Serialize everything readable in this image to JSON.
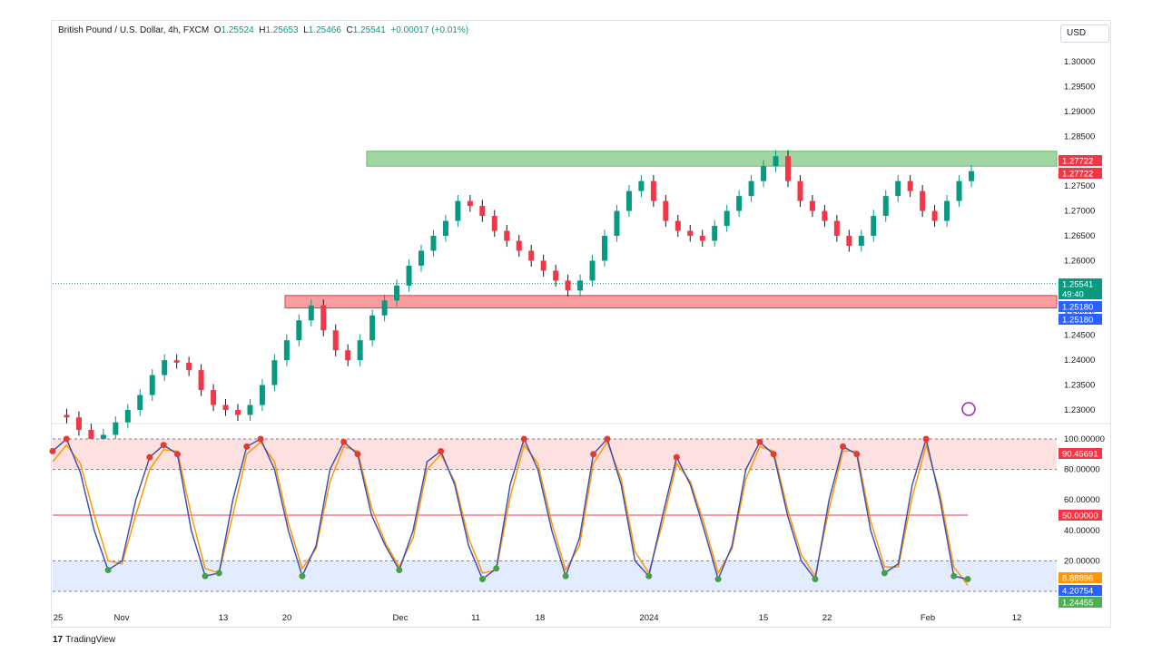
{
  "header": {
    "symbol": "British Pound / U.S. Dollar, 4h, FXCM",
    "o_label": "O",
    "o": "1.25524",
    "h_label": "H",
    "h": "1.25653",
    "l_label": "L",
    "l": "1.25466",
    "c_label": "C",
    "c": "1.25541",
    "change": "+0.00017 (+0.01%)"
  },
  "currency_button": "USD",
  "brand": {
    "glyph": "17",
    "name": "TradingView"
  },
  "chart_data": [
    {
      "type": "line",
      "subtype": "candlestick",
      "series": [
        {
          "values_x": [
            0,
            10,
            20,
            30,
            40,
            50,
            60,
            70,
            80,
            90,
            100,
            110,
            120,
            130,
            140,
            150,
            160,
            170,
            180,
            190,
            200,
            210,
            220,
            230,
            240,
            250,
            260,
            270,
            280,
            290,
            300,
            310,
            320,
            330,
            340,
            350,
            360,
            370,
            380,
            390,
            400,
            410,
            420,
            430,
            440,
            450,
            460,
            470,
            480,
            490,
            500,
            510,
            520,
            530,
            540,
            550,
            560,
            570,
            580,
            590,
            600,
            610,
            620,
            630,
            640,
            650,
            660,
            670,
            680,
            690,
            700,
            710,
            720,
            730,
            740,
            750
          ],
          "values_y": [
            1.229,
            1.2285,
            1.226,
            1.224,
            1.225,
            1.2275,
            1.23,
            1.233,
            1.237,
            1.24,
            1.2395,
            1.238,
            1.234,
            1.231,
            1.23,
            1.229,
            1.231,
            1.235,
            1.24,
            1.244,
            1.248,
            1.251,
            1.246,
            1.242,
            1.24,
            1.244,
            1.249,
            1.252,
            1.255,
            1.259,
            1.262,
            1.265,
            1.268,
            1.272,
            1.271,
            1.269,
            1.266,
            1.264,
            1.262,
            1.26,
            1.258,
            1.256,
            1.254,
            1.256,
            1.26,
            1.265,
            1.27,
            1.274,
            1.276,
            1.272,
            1.268,
            1.266,
            1.265,
            1.264,
            1.267,
            1.27,
            1.273,
            1.276,
            1.279,
            1.281,
            1.276,
            1.272,
            1.27,
            1.268,
            1.265,
            1.263,
            1.265,
            1.269,
            1.273,
            1.276,
            1.274,
            1.27,
            1.268,
            1.272,
            1.276,
            1.278
          ]
        }
      ],
      "y_ticks": [
        "1.30000",
        "1.29500",
        "1.29000",
        "1.28500",
        "1.28000",
        "1.27500",
        "1.27000",
        "1.26500",
        "1.26000",
        "1.25500",
        "1.25000",
        "1.24500",
        "1.24000",
        "1.23500",
        "1.23000"
      ],
      "x_ticks": [
        "25",
        "Nov",
        "13",
        "20",
        "Dec",
        "11",
        "18",
        "2024",
        "15",
        "22",
        "Feb",
        "12"
      ],
      "resistance_zone": [
        1.279,
        1.282
      ],
      "support_zone": [
        1.2505,
        1.253
      ],
      "price_labels": [
        {
          "text": "1.27722",
          "color": "#f23645"
        },
        {
          "text": "1.27722",
          "color": "#f23645"
        },
        {
          "text": "1.25541",
          "color": "#089981"
        },
        {
          "text": "49:40",
          "color": "#089981"
        },
        {
          "text": "1.25180",
          "color": "#2962ff"
        },
        {
          "text": "1.25180",
          "color": "#2962ff"
        }
      ]
    },
    {
      "type": "line",
      "subtype": "stochastic",
      "y_ticks": [
        "100.00000",
        "80.00000",
        "60.00000",
        "40.00000",
        "20.00000"
      ],
      "overbought": 80,
      "oversold": 20,
      "midline": 50,
      "k_line": [
        92,
        100,
        78,
        40,
        14,
        20,
        60,
        88,
        96,
        90,
        40,
        10,
        12,
        60,
        95,
        100,
        80,
        40,
        10,
        30,
        80,
        98,
        90,
        50,
        30,
        14,
        40,
        85,
        92,
        70,
        30,
        8,
        15,
        70,
        100,
        80,
        40,
        10,
        35,
        90,
        100,
        70,
        20,
        10,
        50,
        88,
        70,
        40,
        8,
        30,
        80,
        98,
        90,
        50,
        20,
        8,
        60,
        95,
        90,
        40,
        12,
        18,
        70,
        100,
        60,
        10,
        8
      ],
      "d_line": [
        85,
        96,
        84,
        50,
        20,
        18,
        50,
        80,
        93,
        92,
        50,
        15,
        12,
        50,
        90,
        98,
        85,
        45,
        15,
        28,
        72,
        95,
        92,
        55,
        32,
        16,
        35,
        80,
        90,
        72,
        35,
        12,
        14,
        62,
        96,
        84,
        45,
        14,
        30,
        84,
        98,
        74,
        26,
        12,
        45,
        84,
        72,
        44,
        12,
        28,
        74,
        95,
        92,
        54,
        24,
        10,
        54,
        92,
        92,
        46,
        16,
        16,
        62,
        96,
        64,
        16,
        4
      ],
      "price_labels": [
        {
          "text": "90.45691",
          "color": "#f23645"
        },
        {
          "text": "50.00000",
          "color": "#f23645"
        },
        {
          "text": "8.88896",
          "color": "#ff9800"
        },
        {
          "text": "4.20754",
          "color": "#2962ff"
        },
        {
          "text": "1.24455",
          "color": "#4caf50"
        }
      ]
    }
  ],
  "colors": {
    "up": "#089981",
    "down": "#f23645",
    "resistance": "#66bb6a",
    "support": "#f77c80",
    "stoch_k": "#3f51b5",
    "stoch_d": "#ff9800"
  }
}
